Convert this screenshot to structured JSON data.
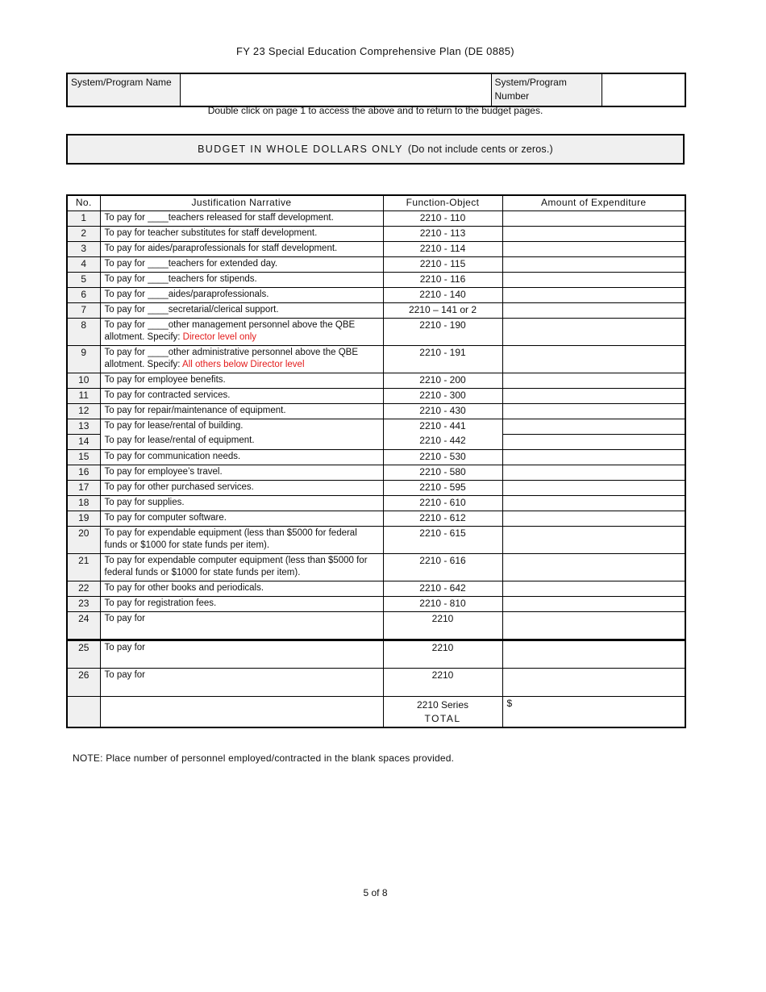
{
  "doc": {
    "title": "FY 23 Special Education Comprehensive Plan (DE 0885)",
    "instruction": "Double click on page 1 to access the above and to return to the budget pages.",
    "banner_caps": "BUDGET IN WHOLE DOLLARS ONLY",
    "banner_paren": "(Do not include cents or zeros.)",
    "note": "NOTE:  Place number of personnel employed/contracted in the blank spaces provided.",
    "page_number": "5 of 8"
  },
  "header_fields": {
    "name_label": "System/Program Name",
    "name_value": "",
    "number_label": "System/Program Number",
    "number_value": ""
  },
  "table": {
    "headers": [
      "No.",
      "Justification Narrative",
      "Function-Object",
      "Amount of Expenditure"
    ],
    "rows": [
      {
        "no": "1",
        "narrative": "To pay for ____teachers released for staff development.",
        "func": "2210 - 110",
        "amount": ""
      },
      {
        "no": "2",
        "narrative": "To pay for teacher substitutes for staff development.",
        "func": "2210 - 113",
        "amount": ""
      },
      {
        "no": "3",
        "narrative": "To pay for aides/paraprofessionals for staff development.",
        "func": "2210 - 114",
        "amount": ""
      },
      {
        "no": "4",
        "narrative": "To pay for ____teachers for extended day.",
        "func": "2210 - 115",
        "amount": ""
      },
      {
        "no": "5",
        "narrative": "To pay for ____teachers for stipends.",
        "func": "2210 - 116",
        "amount": ""
      },
      {
        "no": "6",
        "narrative": "To pay for ____aides/paraprofessionals.",
        "func": "2210 - 140",
        "amount": ""
      },
      {
        "no": "7",
        "narrative": "To pay for ____secretarial/clerical support.",
        "func": "2210 – 141 or 2",
        "amount": ""
      },
      {
        "no": "8",
        "narrative": "To pay for ____other management personnel above the QBE allotment. Specify: ",
        "narrative_red": "Director level only",
        "func": "2210 - 190",
        "amount": ""
      },
      {
        "no": "9",
        "narrative": "To pay for ____other administrative personnel above the QBE allotment. Specify: ",
        "narrative_red": "All others below Director level",
        "func": "2210 - 191",
        "amount": ""
      },
      {
        "no": "10",
        "narrative": "To pay for employee benefits.",
        "func": "2210 - 200",
        "amount": ""
      },
      {
        "no": "11",
        "narrative": "To pay for contracted services.",
        "func": "2210 - 300",
        "amount": ""
      },
      {
        "no": "12",
        "narrative": "To pay for repair/maintenance of equipment.",
        "func": "2210 - 430",
        "amount": ""
      },
      {
        "no": "13",
        "narrative": "To pay for lease/rental of building.",
        "func": "2210 - 441",
        "amount": "",
        "merge_below": true
      },
      {
        "no": "14",
        "narrative": "To pay for lease/rental of equipment.",
        "func": "2210 - 442",
        "amount": ""
      },
      {
        "no": "15",
        "narrative": "To pay for communication needs.",
        "func": "2210 - 530",
        "amount": ""
      },
      {
        "no": "16",
        "narrative": "To pay for employee’s travel.",
        "func": "2210 - 580",
        "amount": ""
      },
      {
        "no": "17",
        "narrative": "To pay for other purchased services.",
        "func": "2210 - 595",
        "amount": ""
      },
      {
        "no": "18",
        "narrative": "To pay for supplies.",
        "func": "2210 - 610",
        "amount": ""
      },
      {
        "no": "19",
        "narrative": "To pay for computer software.",
        "func": "2210 - 612",
        "amount": ""
      },
      {
        "no": "20",
        "narrative": "To pay for expendable equipment (less than $5000 for federal funds or $1000 for state funds per item).",
        "func": "2210 - 615",
        "amount": ""
      },
      {
        "no": "21",
        "narrative": "To pay for expendable computer equipment (less than $5000 for federal funds or $1000 for state funds per item).",
        "func": "2210 - 616",
        "amount": ""
      },
      {
        "no": "22",
        "narrative": "To pay for other books and periodicals.",
        "func": "2210 - 642",
        "amount": ""
      },
      {
        "no": "23",
        "narrative": "To pay for registration fees.",
        "func": "2210 - 810",
        "amount": ""
      },
      {
        "no": "24",
        "narrative": "To pay for",
        "func": "2210",
        "amount": "",
        "tall": true,
        "fill_in": true
      },
      {
        "no": "25",
        "narrative": "To pay for",
        "func": "2210",
        "amount": "",
        "tall": true,
        "fill_in": true,
        "thick_top": true
      },
      {
        "no": "26",
        "narrative": "To pay for",
        "func": "2210",
        "amount": "",
        "tall": true,
        "fill_in": true
      }
    ],
    "total_row": {
      "no": "",
      "narrative": "",
      "func_line1": "2210 Series",
      "func_line2": "TOTAL",
      "amount_prefix": "$"
    }
  },
  "colors": {
    "shade": "#f0f0f0",
    "red": "#e31b1b",
    "border": "#000000"
  }
}
